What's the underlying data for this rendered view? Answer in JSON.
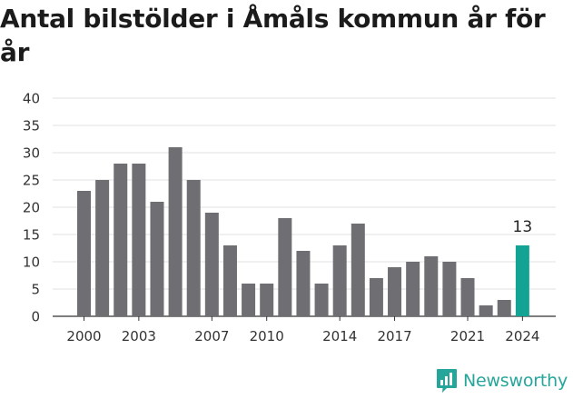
{
  "title": "Antal bilstölder i Åmåls kommun år för år",
  "brand": {
    "name": "Newsworthy",
    "logo_icon": "newsworthy-chart-bubble-icon",
    "color": "#26a69a"
  },
  "chart_data": {
    "type": "bar",
    "title": "Antal bilstölder i Åmåls kommun år för år",
    "xlabel": "",
    "ylabel": "",
    "x": [
      2000,
      2001,
      2002,
      2003,
      2004,
      2005,
      2006,
      2007,
      2008,
      2009,
      2010,
      2011,
      2012,
      2013,
      2014,
      2015,
      2016,
      2017,
      2018,
      2019,
      2020,
      2021,
      2022,
      2023,
      2024
    ],
    "values": [
      23,
      25,
      28,
      28,
      21,
      31,
      25,
      19,
      13,
      6,
      6,
      18,
      12,
      6,
      13,
      17,
      7,
      9,
      10,
      11,
      10,
      7,
      2,
      3,
      13
    ],
    "x_ticks": [
      2000,
      2003,
      2007,
      2010,
      2014,
      2017,
      2021,
      2024
    ],
    "y_ticks": [
      0,
      5,
      10,
      15,
      20,
      25,
      30,
      35,
      40
    ],
    "ylim": [
      0,
      40
    ],
    "grid": "horizontal",
    "highlight": {
      "year": 2024,
      "label": "13",
      "color": "#13a394"
    },
    "bar_color": "#6f6e73",
    "gridline_color": "#e0e0e0"
  }
}
